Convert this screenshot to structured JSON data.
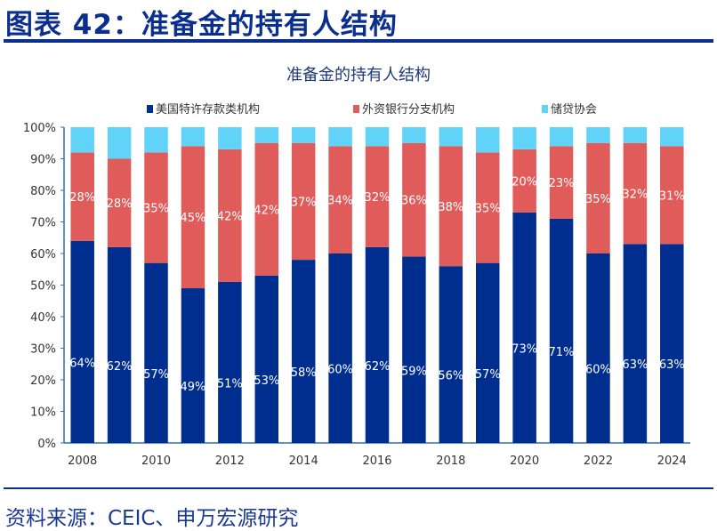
{
  "header": {
    "title": "图表 42：准备金的持有人结构"
  },
  "footer": {
    "source": "资料来源：CEIC、申万宏源研究"
  },
  "chart_data": {
    "type": "stacked-bar",
    "title": "准备金的持有人结构",
    "categories": [
      "2008",
      "2009",
      "2010",
      "2011",
      "2012",
      "2013",
      "2014",
      "2015",
      "2016",
      "2017",
      "2018",
      "2019",
      "2020",
      "2021",
      "2022",
      "2023",
      "2024"
    ],
    "x_tick_labels": [
      "2008",
      "2010",
      "2012",
      "2014",
      "2016",
      "2018",
      "2020",
      "2022",
      "2024"
    ],
    "ylim": [
      0,
      100
    ],
    "y_ticks": [
      "0%",
      "10%",
      "20%",
      "30%",
      "40%",
      "50%",
      "60%",
      "70%",
      "80%",
      "90%",
      "100%"
    ],
    "legend_position": "top",
    "series": [
      {
        "name": "美国特许存款类机构",
        "color": "#002e8f",
        "values": [
          64,
          62,
          57,
          49,
          51,
          53,
          58,
          60,
          62,
          59,
          56,
          57,
          73,
          71,
          60,
          63,
          63
        ],
        "labels": [
          "64%",
          "62%",
          "57%",
          "49%",
          "51%",
          "53%",
          "58%",
          "60%",
          "62%",
          "59%",
          "56%",
          "57%",
          "73%",
          "71%",
          "60%",
          "63%",
          "63%"
        ]
      },
      {
        "name": "外资银行分支机构",
        "color": "#e05c5a",
        "values": [
          28,
          28,
          35,
          45,
          42,
          42,
          37,
          34,
          32,
          36,
          38,
          35,
          20,
          23,
          35,
          32,
          31
        ],
        "labels": [
          "28%",
          "28%",
          "35%",
          "45%",
          "42%",
          "42%",
          "37%",
          "34%",
          "32%",
          "36%",
          "38%",
          "35%",
          "20%",
          "23%",
          "35%",
          "32%",
          "31%"
        ]
      },
      {
        "name": "储贷协会",
        "color": "#62d3f8",
        "values": [
          8,
          10,
          8,
          6,
          7,
          5,
          5,
          6,
          6,
          5,
          6,
          8,
          7,
          6,
          5,
          5,
          6
        ]
      }
    ]
  }
}
